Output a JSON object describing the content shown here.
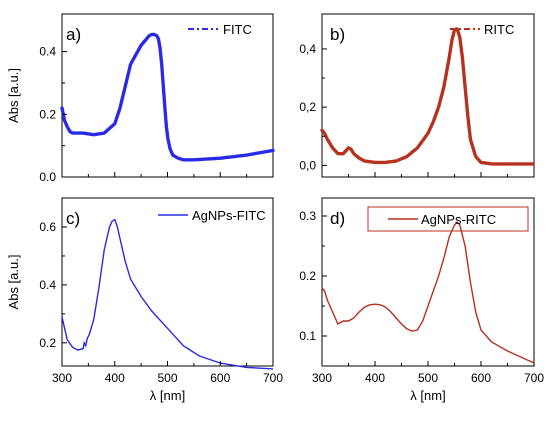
{
  "chart_data": [
    {
      "type": "line",
      "panel_label": "a)",
      "legend": "FITC",
      "color": "#2a2ae6",
      "marker_style": "dotted",
      "xlim": [
        300,
        700
      ],
      "ylim": [
        0.0,
        0.52
      ],
      "yticks": [
        "0.0",
        "0.2",
        "0.4"
      ],
      "ytick_values": [
        0.0,
        0.2,
        0.4
      ],
      "show_xticklabels": false,
      "ylabel": "Abs [a.u.]",
      "xlabel": "",
      "x": [
        300,
        305,
        310,
        315,
        320,
        330,
        340,
        360,
        380,
        400,
        410,
        420,
        430,
        440,
        450,
        460,
        465,
        470,
        475,
        480,
        483,
        486,
        489,
        492,
        495,
        498,
        501,
        505,
        510,
        520,
        530,
        550,
        600,
        650,
        700
      ],
      "y": [
        0.22,
        0.18,
        0.16,
        0.145,
        0.14,
        0.14,
        0.14,
        0.135,
        0.14,
        0.17,
        0.22,
        0.29,
        0.36,
        0.39,
        0.42,
        0.44,
        0.45,
        0.455,
        0.455,
        0.45,
        0.44,
        0.41,
        0.36,
        0.29,
        0.22,
        0.16,
        0.12,
        0.09,
        0.07,
        0.06,
        0.055,
        0.055,
        0.06,
        0.07,
        0.085
      ]
    },
    {
      "type": "line",
      "panel_label": "b)",
      "legend": "RITC",
      "color": "#b5321e",
      "marker_style": "dotted",
      "xlim": [
        300,
        700
      ],
      "ylim": [
        -0.04,
        0.52
      ],
      "yticks": [
        "0,0",
        "0,2",
        "0,4"
      ],
      "ytick_values": [
        0.0,
        0.2,
        0.4
      ],
      "show_xticklabels": false,
      "ylabel": "",
      "xlabel": "",
      "x": [
        300,
        305,
        310,
        320,
        330,
        340,
        345,
        350,
        355,
        360,
        370,
        380,
        400,
        420,
        440,
        460,
        480,
        500,
        510,
        520,
        530,
        540,
        545,
        550,
        555,
        560,
        565,
        570,
        575,
        580,
        590,
        600,
        620,
        650,
        700
      ],
      "y": [
        0.12,
        0.11,
        0.09,
        0.06,
        0.04,
        0.04,
        0.05,
        0.06,
        0.055,
        0.04,
        0.025,
        0.015,
        0.01,
        0.01,
        0.015,
        0.03,
        0.06,
        0.11,
        0.15,
        0.2,
        0.27,
        0.37,
        0.43,
        0.465,
        0.47,
        0.44,
        0.37,
        0.27,
        0.17,
        0.09,
        0.03,
        0.01,
        0.005,
        0.005,
        0.005
      ]
    },
    {
      "type": "line",
      "panel_label": "c)",
      "legend": "AgNPs-FITC",
      "color": "#2a2ae6",
      "marker_style": "solid",
      "xlim": [
        300,
        700
      ],
      "ylim": [
        0.12,
        0.7
      ],
      "yticks": [
        "0.2",
        "0.4",
        "0.6"
      ],
      "ytick_values": [
        0.2,
        0.4,
        0.6
      ],
      "xticks": [
        "300",
        "400",
        "500",
        "600",
        "700"
      ],
      "xtick_values": [
        300,
        400,
        500,
        600,
        700
      ],
      "show_xticklabels": true,
      "ylabel": "Abs [a.u.]",
      "xlabel": "",
      "x": [
        300,
        305,
        310,
        320,
        330,
        340,
        342,
        345,
        348,
        352,
        360,
        370,
        380,
        390,
        395,
        400,
        405,
        410,
        420,
        430,
        450,
        470,
        500,
        530,
        560,
        600,
        650,
        700
      ],
      "y": [
        0.29,
        0.25,
        0.21,
        0.185,
        0.175,
        0.18,
        0.2,
        0.19,
        0.215,
        0.23,
        0.28,
        0.39,
        0.52,
        0.6,
        0.62,
        0.625,
        0.6,
        0.56,
        0.48,
        0.42,
        0.36,
        0.31,
        0.25,
        0.19,
        0.155,
        0.13,
        0.115,
        0.11
      ]
    },
    {
      "type": "line",
      "panel_label": "d)",
      "legend": "AgNPs-RITC",
      "color": "#b5321e",
      "marker_style": "solid",
      "xlim": [
        300,
        700
      ],
      "ylim": [
        0.05,
        0.33
      ],
      "yticks": [
        "0.1",
        "0.2",
        "0.3"
      ],
      "ytick_values": [
        0.1,
        0.2,
        0.3
      ],
      "xticks": [
        "300",
        "400",
        "500",
        "600",
        "700"
      ],
      "xtick_values": [
        300,
        400,
        500,
        600,
        700
      ],
      "show_xticklabels": true,
      "ylabel": "",
      "xlabel": "λ [nm]",
      "x": [
        300,
        305,
        310,
        320,
        330,
        340,
        350,
        360,
        370,
        380,
        390,
        400,
        410,
        420,
        430,
        440,
        450,
        460,
        470,
        480,
        490,
        500,
        510,
        520,
        530,
        540,
        550,
        555,
        560,
        570,
        580,
        590,
        600,
        620,
        650,
        700
      ],
      "y": [
        0.18,
        0.175,
        0.16,
        0.14,
        0.12,
        0.125,
        0.125,
        0.13,
        0.14,
        0.148,
        0.152,
        0.153,
        0.152,
        0.148,
        0.14,
        0.13,
        0.12,
        0.112,
        0.108,
        0.11,
        0.125,
        0.15,
        0.175,
        0.2,
        0.23,
        0.265,
        0.285,
        0.29,
        0.285,
        0.25,
        0.19,
        0.14,
        0.11,
        0.09,
        0.075,
        0.055
      ]
    }
  ],
  "x_axis_label_left": "λ [nm]"
}
